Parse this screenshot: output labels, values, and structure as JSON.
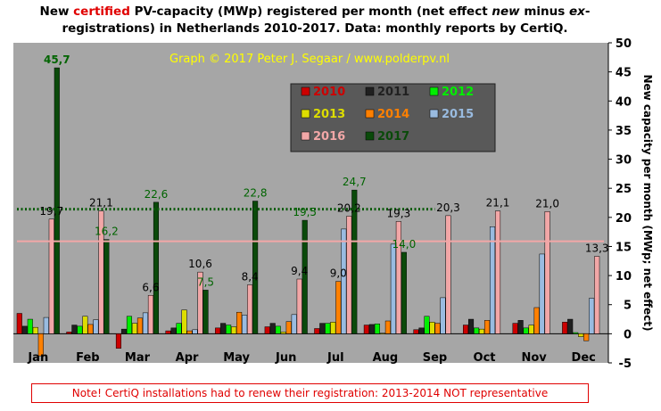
{
  "title": {
    "part1": "New ",
    "accent": "certified",
    "part2": " PV-capacity (MWp) registered per month (net effect ",
    "italic": "new",
    "part3": " minus ",
    "italic2": "ex",
    "part4": "-registrations) in Netherlands 2010-2017. Data: monthly reports by CertiQ.",
    "accent_color": "#e00000"
  },
  "credit": "Graph © 2017 Peter J. Segaar / www.polderpv.nl",
  "note": "Note! CertiQ installations  had to renew their registration: 2013-2014  NOT representative",
  "colors": {
    "plot_bg": "#a6a6a6",
    "legend_bg": "#595959",
    "credit": "#ffff00",
    "label_dark": "#000000",
    "label_green": "#006400"
  },
  "chart_data": {
    "type": "bar",
    "title": "New certified PV-capacity (MWp) registered per month (net effect new minus ex-registrations) in Netherlands 2010-2017. Data: monthly reports by CertiQ.",
    "ylabel": "New capacity per month (MWp; net effect)",
    "xlabel": "",
    "ylim": [
      -5,
      50
    ],
    "yticks": [
      -5,
      0,
      5,
      10,
      15,
      20,
      25,
      30,
      35,
      40,
      45,
      50
    ],
    "grid": false,
    "legend_position": "top-center",
    "categories": [
      "Jan",
      "Feb",
      "Mar",
      "Apr",
      "May",
      "Jun",
      "Jul",
      "Aug",
      "Sep",
      "Oct",
      "Nov",
      "Dec"
    ],
    "series": [
      {
        "name": "2010",
        "color": "#cc0000",
        "values": [
          3.5,
          0.3,
          -2.5,
          0.5,
          1.0,
          1.2,
          0.9,
          1.5,
          0.7,
          1.5,
          1.8,
          2.0
        ]
      },
      {
        "name": "2011",
        "color": "#202020",
        "values": [
          1.3,
          1.5,
          0.8,
          1.0,
          1.8,
          1.8,
          1.8,
          1.6,
          1.0,
          2.5,
          2.3,
          2.5
        ]
      },
      {
        "name": "2012",
        "color": "#00ee00",
        "values": [
          2.5,
          1.3,
          3.0,
          1.8,
          1.5,
          1.3,
          1.8,
          1.7,
          3.0,
          1.0,
          1.0,
          0.2
        ]
      },
      {
        "name": "2013",
        "color": "#dddd00",
        "values": [
          1.1,
          3.0,
          1.8,
          4.1,
          1.2,
          0.3,
          2.0,
          0.1,
          2.0,
          0.8,
          1.5,
          -0.5
        ]
      },
      {
        "name": "2014",
        "color": "#ff8000",
        "values": [
          -3.8,
          1.6,
          2.7,
          0.5,
          3.7,
          2.1,
          9.0,
          2.2,
          1.8,
          2.3,
          4.5,
          -1.2
        ]
      },
      {
        "name": "2015",
        "color": "#99bbe0",
        "values": [
          2.8,
          2.4,
          3.6,
          0.7,
          3.2,
          3.3,
          18.0,
          15.4,
          6.2,
          18.4,
          13.7,
          6.1
        ]
      },
      {
        "name": "2016",
        "color": "#f2a7a7",
        "values": [
          19.7,
          21.1,
          6.6,
          10.6,
          8.4,
          9.4,
          20.2,
          19.3,
          20.3,
          21.1,
          21.0,
          13.3
        ]
      },
      {
        "name": "2017",
        "color": "#0a4a0a",
        "values": [
          45.7,
          16.2,
          22.6,
          7.5,
          22.8,
          19.5,
          24.7,
          14.0,
          null,
          null,
          null,
          null
        ]
      }
    ],
    "data_labels": [
      {
        "text": "45,7",
        "series": "2017",
        "month": "Jan"
      },
      {
        "text": "19,7",
        "series": "2016",
        "month": "Jan"
      },
      {
        "text": "21,1",
        "series": "2016",
        "month": "Feb"
      },
      {
        "text": "16,2",
        "series": "2017",
        "month": "Feb"
      },
      {
        "text": "6,6",
        "series": "2016",
        "month": "Mar"
      },
      {
        "text": "22,6",
        "series": "2017",
        "month": "Mar"
      },
      {
        "text": "10,6",
        "series": "2016",
        "month": "Apr"
      },
      {
        "text": "7,5",
        "series": "2017",
        "month": "Apr"
      },
      {
        "text": "8,4",
        "series": "2016",
        "month": "May"
      },
      {
        "text": "22,8",
        "series": "2017",
        "month": "May"
      },
      {
        "text": "9,4",
        "series": "2016",
        "month": "Jun"
      },
      {
        "text": "19,5",
        "series": "2017",
        "month": "Jun"
      },
      {
        "text": "9,0",
        "series": "2014",
        "month": "Jul"
      },
      {
        "text": "20,2",
        "series": "2016",
        "month": "Jul"
      },
      {
        "text": "24,7",
        "series": "2017",
        "month": "Jul"
      },
      {
        "text": "19,3",
        "series": "2016",
        "month": "Aug"
      },
      {
        "text": "14,0",
        "series": "2017",
        "month": "Aug"
      },
      {
        "text": "20,3",
        "series": "2016",
        "month": "Sep"
      },
      {
        "text": "21,1",
        "series": "2016",
        "month": "Oct"
      },
      {
        "text": "21,0",
        "series": "2016",
        "month": "Nov"
      },
      {
        "text": "13,3",
        "series": "2016",
        "month": "Dec"
      }
    ],
    "reference_lines": [
      {
        "series": "2017",
        "value": 21.4,
        "style": "dotted",
        "color": "#0a5a0a",
        "months": "Jan-Sep"
      },
      {
        "series": "2016",
        "value": 15.9,
        "style": "solid",
        "color": "#f2a7a7",
        "months": "Jan-Dec"
      }
    ]
  }
}
